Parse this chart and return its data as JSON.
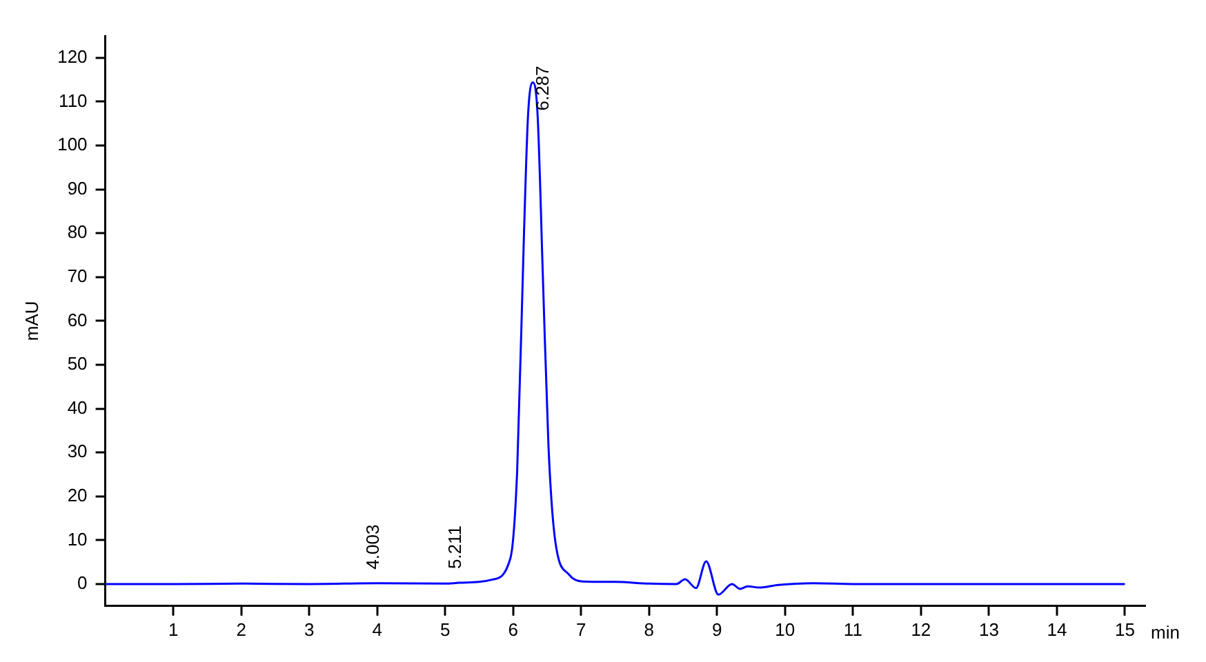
{
  "chart_data": {
    "type": "line",
    "xlabel": "min",
    "ylabel": "mAU",
    "series": [
      {
        "color": "#0000ff",
        "x": [
          0,
          1,
          2,
          3,
          4,
          4.003,
          5,
          5.211,
          5.5,
          5.69,
          5.96,
          6.06,
          6.16,
          6.22,
          6.29,
          6.36,
          6.44,
          6.52,
          6.62,
          6.82,
          7.02,
          7.5,
          8,
          8.4,
          8.53,
          8.69,
          8.84,
          9.02,
          9.22,
          9.34,
          9.45,
          9.62,
          9.9,
          10.42,
          11,
          12,
          13,
          14,
          15
        ],
        "values": [
          0,
          0,
          0.1,
          0,
          0.2,
          0.2,
          0.1,
          0.3,
          0.5,
          1,
          5.9,
          26,
          80,
          107,
          114.4,
          107,
          69,
          31.5,
          9.8,
          2.2,
          0.6,
          0.5,
          0.1,
          0,
          1.1,
          -0.9,
          5.2,
          -2.4,
          0,
          -1.1,
          -0.5,
          -0.8,
          -0.2,
          0.2,
          0,
          0,
          0,
          0,
          0
        ]
      }
    ],
    "xlim": [
      0,
      15.3
    ],
    "ylim": [
      -5,
      125
    ],
    "xticks": [
      1,
      2,
      3,
      4,
      5,
      6,
      7,
      8,
      9,
      10,
      11,
      12,
      13,
      14,
      15
    ],
    "yticks": [
      0,
      10,
      20,
      30,
      40,
      50,
      60,
      70,
      80,
      90,
      100,
      110,
      120
    ],
    "grid": false,
    "legend": false,
    "marker": "none",
    "line_style": "solid",
    "annotations": [
      {
        "text": "4.003",
        "x": 4.003,
        "y": 0.2
      },
      {
        "text": "5.211",
        "x": 5.211,
        "y": 0.3
      },
      {
        "text": "6.287",
        "x": 6.29,
        "y": 114.4
      }
    ]
  }
}
